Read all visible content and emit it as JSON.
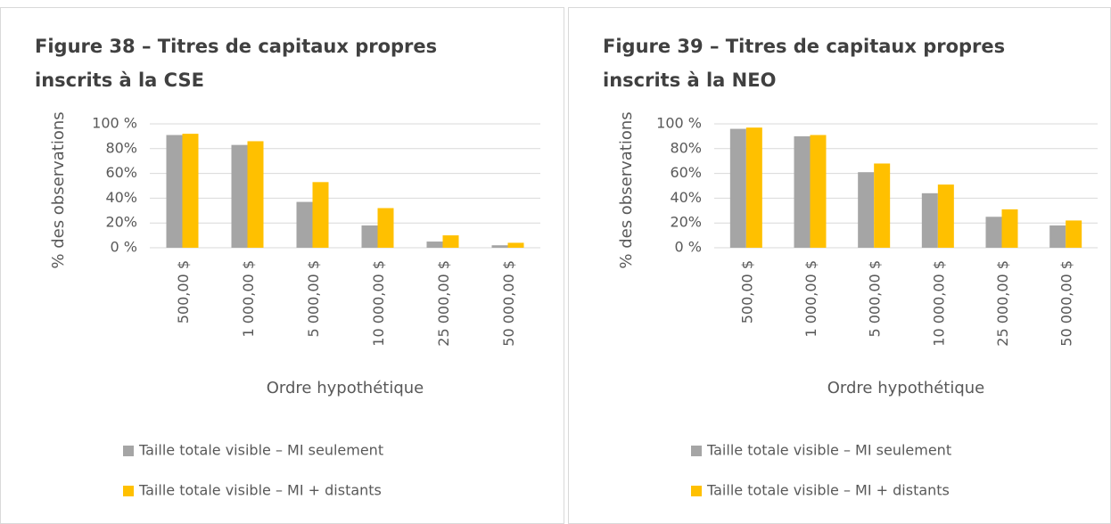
{
  "chart_data": [
    {
      "type": "bar",
      "title": "Figure 38 – Titres de capitaux propres inscrits à la CSE",
      "xlabel": "Ordre hypothétique",
      "ylabel": "% des observations",
      "categories": [
        "500,00 $",
        "1 000,00 $",
        "5 000,00 $",
        "10 000,00 $",
        "25 000,00 $",
        "50 000,00 $"
      ],
      "series": [
        {
          "name": "Taille totale visible – MI seulement",
          "color": "#a5a5a5",
          "values": [
            91,
            83,
            37,
            18,
            5,
            2
          ]
        },
        {
          "name": "Taille totale visible – MI + distants",
          "color": "#ffc000",
          "values": [
            92,
            86,
            53,
            32,
            10,
            4
          ]
        }
      ],
      "ylim": [
        0,
        100
      ],
      "yticks": [
        {
          "value": 0,
          "label": "0 %"
        },
        {
          "value": 20,
          "label": "20%"
        },
        {
          "value": 40,
          "label": "40%"
        },
        {
          "value": 60,
          "label": "60%"
        },
        {
          "value": 80,
          "label": "80%"
        },
        {
          "value": 100,
          "label": "100 %"
        }
      ],
      "grid": true,
      "legend": "bottom"
    },
    {
      "type": "bar",
      "title": "Figure 39 – Titres de capitaux propres inscrits à la NEO",
      "xlabel": "Ordre hypothétique",
      "ylabel": "% des observations",
      "categories": [
        "500,00 $",
        "1 000,00 $",
        "5 000,00 $",
        "10 000,00 $",
        "25 000,00 $",
        "50 000,00 $"
      ],
      "series": [
        {
          "name": "Taille totale visible – MI seulement",
          "color": "#a5a5a5",
          "values": [
            96,
            90,
            61,
            44,
            25,
            18
          ]
        },
        {
          "name": "Taille totale visible – MI + distants",
          "color": "#ffc000",
          "values": [
            97,
            91,
            68,
            51,
            31,
            22
          ]
        }
      ],
      "ylim": [
        0,
        100
      ],
      "yticks": [
        {
          "value": 0,
          "label": "0 %"
        },
        {
          "value": 20,
          "label": "20%"
        },
        {
          "value": 40,
          "label": "40%"
        },
        {
          "value": 60,
          "label": "60%"
        },
        {
          "value": 80,
          "label": "80%"
        },
        {
          "value": 100,
          "label": "100 %"
        }
      ],
      "grid": true,
      "legend": "bottom"
    }
  ]
}
